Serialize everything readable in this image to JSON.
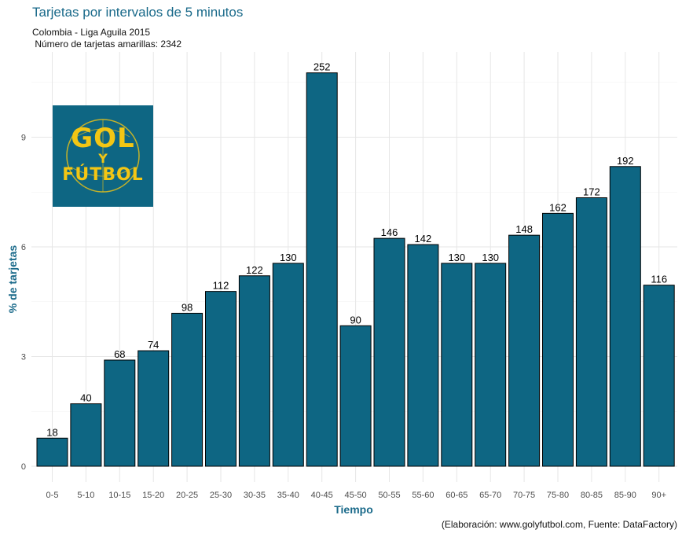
{
  "chart_data": {
    "type": "bar",
    "title": "Tarjetas por intervalos de 5 minutos",
    "subtitle_line1": "Colombia - Liga Aguila 2015",
    "subtitle_line2": " Número de tarjetas amarillas: 2342",
    "xlabel": "Tiempo",
    "ylabel": "% de tarjetas",
    "caption": "(Elaboración: www.golyfutbol.com, Fuente: DataFactory)",
    "categories": [
      "0-5",
      "5-10",
      "10-15",
      "15-20",
      "20-25",
      "25-30",
      "30-35",
      "35-40",
      "40-45",
      "45-50",
      "50-55",
      "55-60",
      "60-65",
      "65-70",
      "70-75",
      "75-80",
      "80-85",
      "85-90",
      "90+"
    ],
    "counts": [
      18,
      40,
      68,
      74,
      98,
      112,
      122,
      130,
      252,
      90,
      146,
      142,
      130,
      130,
      148,
      162,
      172,
      192,
      116
    ],
    "total": 2342,
    "yticks": [
      0,
      3,
      6,
      9
    ],
    "ylim": [
      0,
      11.3
    ],
    "bar_color": "#0e6683"
  },
  "logo": {
    "line1": "GOL",
    "line2": "Y",
    "line3": "FÚTBOL",
    "background": "#0e6683",
    "text_color": "#f3c614"
  }
}
